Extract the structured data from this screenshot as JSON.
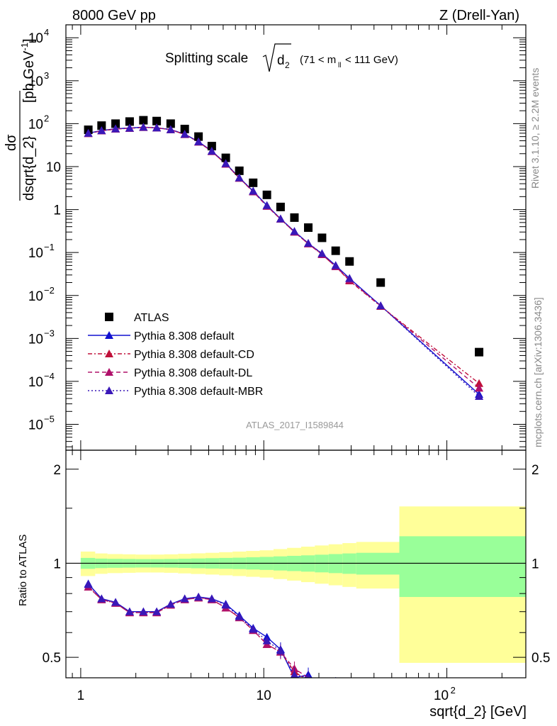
{
  "header": {
    "left": "8000 GeV pp",
    "right": "Z (Drell-Yan)"
  },
  "side_labels": {
    "rivet": "Rivet 3.1.10, ≥ 2.2M events",
    "mcplots": "mcplots.cern.ch [arXiv:1306.3436]"
  },
  "analysis_id": "ATLAS_2017_I1589844",
  "chart_data": [
    {
      "type": "scatter",
      "panel": "main",
      "title": "Splitting scale √d₂ (71 < m_ll < 111 GeV)",
      "title_main": "Splitting scale",
      "title_var": "d",
      "title_sub": "2",
      "title_range_a": "(71 < m",
      "title_range_sub": "ll",
      "title_range_b": " < 111 GeV)",
      "ylabel": "dσ/dsqrt{d_2} [pb,GeV⁻¹]",
      "ylabel_num": "dσ",
      "ylabel_den": "dsqrt{d_2}",
      "ylabel_unit": "[pb,GeV",
      "ylabel_unit_sup": "-1",
      "ylabel_unit_end": "]",
      "x_scale": "log",
      "y_scale": "log",
      "xlim": [
        0.83,
        270
      ],
      "ylim": [
        2.5e-06,
        20000
      ],
      "y_tick_labels": [
        "10^-5",
        "10^-4",
        "10^-3",
        "10^-2",
        "10^-1",
        "1",
        "10",
        "10^2",
        "10^3",
        "10^4"
      ],
      "legend_position": "lower-left",
      "legend_labels": [
        "ATLAS",
        "Pythia 8.308 default",
        "Pythia 8.308 default-CD",
        "Pythia 8.308 default-DL",
        "Pythia 8.308 default-MBR"
      ],
      "x": [
        1.1,
        1.3,
        1.55,
        1.85,
        2.2,
        2.6,
        3.1,
        3.7,
        4.4,
        5.2,
        6.2,
        7.35,
        8.75,
        10.4,
        12.35,
        14.7,
        17.5,
        20.8,
        24.7,
        29.4,
        43.5,
        150
      ],
      "series": [
        {
          "name": "ATLAS",
          "color": "#000000",
          "marker": "square",
          "values": [
            72,
            90,
            100,
            112,
            120,
            115,
            100,
            75,
            50,
            30,
            16,
            8,
            4.2,
            2.2,
            1.15,
            0.65,
            0.38,
            0.22,
            0.11,
            0.062,
            0.02,
            0.00048
          ]
        },
        {
          "name": "Pythia 8.308 default",
          "color": "#1010d0",
          "marker": "triangle",
          "line": "solid",
          "values": [
            60,
            69,
            76,
            79,
            83,
            80,
            73,
            57,
            38,
            23,
            11.8,
            5.5,
            2.7,
            1.25,
            0.61,
            0.31,
            0.163,
            0.094,
            0.05,
            0.025,
            0.0058,
            5e-05
          ]
        },
        {
          "name": "Pythia 8.308 default-CD",
          "color": "#c0103a",
          "marker": "triangle",
          "line": "dashdot",
          "values": [
            59,
            68,
            75,
            78,
            82,
            80,
            72,
            56,
            37.5,
            22.5,
            11.5,
            5.4,
            2.6,
            1.2,
            0.6,
            0.3,
            0.16,
            0.09,
            0.047,
            0.022,
            0.0056,
            9e-05
          ]
        },
        {
          "name": "Pythia 8.308 default-DL",
          "color": "#b0106a",
          "marker": "triangle",
          "line": "dashed",
          "values": [
            59,
            68,
            75,
            78,
            82,
            80,
            72,
            56,
            37.5,
            22.5,
            11.5,
            5.4,
            2.6,
            1.2,
            0.6,
            0.3,
            0.16,
            0.09,
            0.047,
            0.023,
            0.0057,
            7e-05
          ]
        },
        {
          "name": "Pythia 8.308 default-MBR",
          "color": "#3a18b8",
          "marker": "triangle",
          "line": "dotted",
          "values": [
            60,
            69,
            76,
            79,
            83,
            80,
            73,
            57,
            38,
            23,
            11.8,
            5.5,
            2.7,
            1.25,
            0.61,
            0.31,
            0.165,
            0.095,
            0.05,
            0.025,
            0.0058,
            4.5e-05
          ]
        }
      ]
    },
    {
      "type": "scatter",
      "panel": "ratio",
      "ylabel": "Ratio to ATLAS",
      "xlabel": "sqrt{d_2} [GeV]",
      "x_scale": "log",
      "xlim": [
        0.83,
        270
      ],
      "ylim": [
        0.43,
        2.3
      ],
      "y_tick_labels": [
        "0.5",
        "1",
        "2"
      ],
      "x_tick_labels": [
        "1",
        "10",
        "10^2"
      ],
      "bands": {
        "bin_edges": [
          1.0,
          1.2,
          1.4,
          1.7,
          2.0,
          2.4,
          2.85,
          3.4,
          4.0,
          4.8,
          5.7,
          6.75,
          8.0,
          9.5,
          11.3,
          13.4,
          16.0,
          19.0,
          22.6,
          26.9,
          32.0,
          55.0,
          270
        ],
        "green_half_width": [
          0.04,
          0.035,
          0.033,
          0.032,
          0.031,
          0.031,
          0.032,
          0.034,
          0.036,
          0.038,
          0.04,
          0.042,
          0.045,
          0.048,
          0.052,
          0.056,
          0.06,
          0.065,
          0.07,
          0.075,
          0.08,
          0.22
        ],
        "yellow_half_width": [
          0.09,
          0.075,
          0.07,
          0.068,
          0.066,
          0.066,
          0.068,
          0.072,
          0.076,
          0.08,
          0.085,
          0.09,
          0.095,
          0.1,
          0.11,
          0.12,
          0.13,
          0.14,
          0.15,
          0.16,
          0.17,
          0.52
        ],
        "green_color": "#99ff99",
        "yellow_color": "#ffff99"
      },
      "x": [
        1.1,
        1.3,
        1.55,
        1.85,
        2.2,
        2.6,
        3.1,
        3.7,
        4.4,
        5.2,
        6.2,
        7.35,
        8.75,
        10.4,
        12.35,
        14.7,
        17.5,
        20.8,
        24.7
      ],
      "series": [
        {
          "name": "Pythia 8.308 default",
          "color": "#1010d0",
          "line": "solid",
          "values": [
            0.86,
            0.77,
            0.75,
            0.7,
            0.7,
            0.7,
            0.74,
            0.77,
            0.78,
            0.77,
            0.74,
            0.68,
            0.62,
            0.58,
            0.53,
            0.43,
            0.44,
            0.4,
            0.41
          ]
        },
        {
          "name": "Pythia 8.308 default-CD",
          "color": "#c0103a",
          "line": "dashdot",
          "values": [
            0.84,
            0.765,
            0.745,
            0.695,
            0.695,
            0.695,
            0.735,
            0.765,
            0.775,
            0.765,
            0.72,
            0.67,
            0.61,
            0.55,
            0.52,
            0.45,
            0.42,
            0.37,
            0.36
          ]
        },
        {
          "name": "Pythia 8.308 default-DL",
          "color": "#b0106a",
          "line": "dashed",
          "values": [
            0.84,
            0.765,
            0.745,
            0.695,
            0.695,
            0.695,
            0.735,
            0.765,
            0.775,
            0.765,
            0.72,
            0.67,
            0.61,
            0.55,
            0.52,
            0.46,
            0.43,
            0.38,
            0.37
          ]
        },
        {
          "name": "Pythia 8.308 default-MBR",
          "color": "#3a18b8",
          "line": "dotted",
          "values": [
            0.855,
            0.77,
            0.75,
            0.7,
            0.7,
            0.7,
            0.74,
            0.77,
            0.78,
            0.77,
            0.735,
            0.675,
            0.615,
            0.565,
            0.525,
            0.44,
            0.43,
            0.39,
            0.38
          ]
        }
      ]
    }
  ]
}
